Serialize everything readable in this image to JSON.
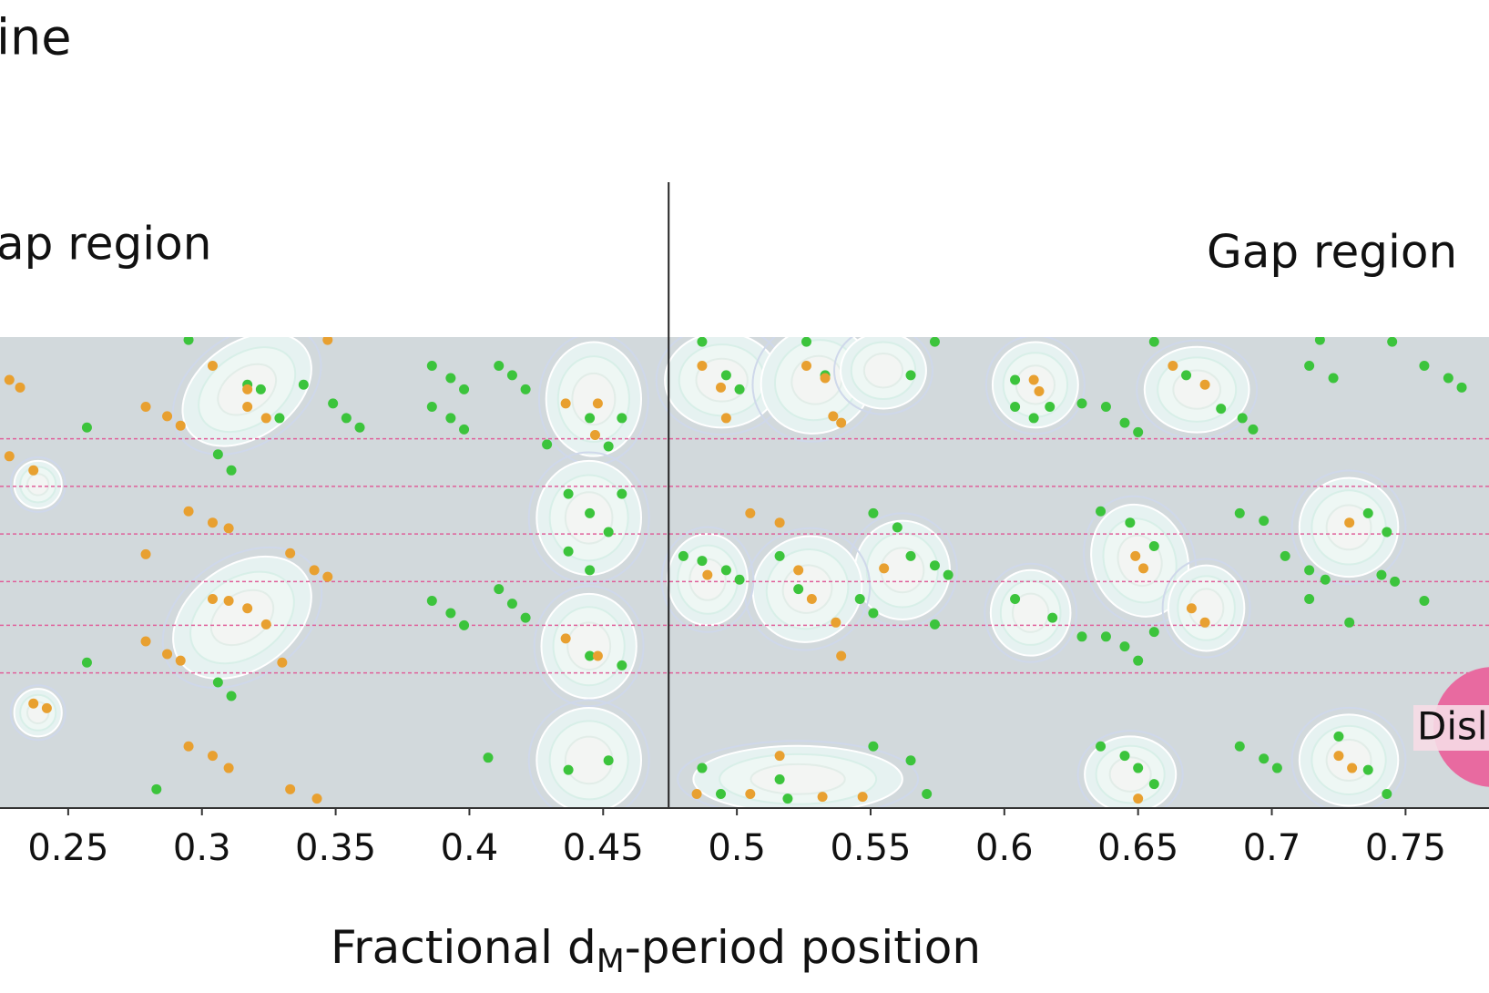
{
  "chart_data": {
    "type": "scatter",
    "title": "ine",
    "annotations": {
      "left_region": "ap region",
      "right_region": "Gap region",
      "badge": "Disl"
    },
    "xlabel": {
      "text": "Fractional d",
      "sub": "M",
      "rest": "-period position"
    },
    "xlim": [
      0.2245,
      0.7812
    ],
    "ylim": [
      0,
      1
    ],
    "xticks": [
      0.25,
      0.3,
      0.35,
      0.4,
      0.45,
      0.5,
      0.55,
      0.6,
      0.65,
      0.7,
      0.75
    ],
    "vline": 0.4745,
    "hlines": [
      0.784,
      0.683,
      0.582,
      0.481,
      0.388,
      0.287
    ],
    "series": [
      {
        "color": "#3cc43c",
        "x": [
          0.295,
          0.257,
          0.306,
          0.311,
          0.317,
          0.322,
          0.329,
          0.338,
          0.349,
          0.354,
          0.359,
          0.386,
          0.393,
          0.398,
          0.411,
          0.416,
          0.421,
          0.386,
          0.393,
          0.398,
          0.429,
          0.445,
          0.452,
          0.457,
          0.437,
          0.445,
          0.457,
          0.452,
          0.437,
          0.445,
          0.386,
          0.393,
          0.398,
          0.411,
          0.416,
          0.421,
          0.257,
          0.306,
          0.311,
          0.445,
          0.457,
          0.407,
          0.437,
          0.452,
          0.283,
          0.487,
          0.496,
          0.501,
          0.526,
          0.533,
          0.574,
          0.565,
          0.604,
          0.604,
          0.611,
          0.617,
          0.629,
          0.638,
          0.645,
          0.65,
          0.656,
          0.668,
          0.681,
          0.689,
          0.693,
          0.718,
          0.714,
          0.723,
          0.757,
          0.766,
          0.771,
          0.745,
          0.636,
          0.647,
          0.656,
          0.688,
          0.697,
          0.705,
          0.714,
          0.72,
          0.736,
          0.743,
          0.741,
          0.746,
          0.714,
          0.729,
          0.757,
          0.604,
          0.618,
          0.629,
          0.638,
          0.645,
          0.65,
          0.656,
          0.551,
          0.56,
          0.565,
          0.574,
          0.579,
          0.48,
          0.487,
          0.496,
          0.501,
          0.516,
          0.523,
          0.546,
          0.551,
          0.574,
          0.636,
          0.645,
          0.65,
          0.656,
          0.688,
          0.697,
          0.702,
          0.736,
          0.725,
          0.743,
          0.551,
          0.565,
          0.571,
          0.487,
          0.494,
          0.516,
          0.519
        ],
        "values": [
          0.994,
          0.808,
          0.751,
          0.717,
          0.899,
          0.889,
          0.828,
          0.899,
          0.859,
          0.828,
          0.808,
          0.939,
          0.913,
          0.889,
          0.939,
          0.919,
          0.889,
          0.852,
          0.828,
          0.804,
          0.772,
          0.828,
          0.768,
          0.828,
          0.667,
          0.626,
          0.667,
          0.586,
          0.545,
          0.505,
          0.44,
          0.414,
          0.388,
          0.465,
          0.434,
          0.404,
          0.309,
          0.267,
          0.238,
          0.323,
          0.303,
          0.107,
          0.081,
          0.101,
          0.04,
          0.99,
          0.919,
          0.889,
          0.99,
          0.919,
          0.99,
          0.919,
          0.909,
          0.852,
          0.828,
          0.852,
          0.859,
          0.852,
          0.818,
          0.798,
          0.99,
          0.919,
          0.848,
          0.828,
          0.804,
          0.994,
          0.939,
          0.913,
          0.939,
          0.913,
          0.893,
          0.99,
          0.63,
          0.606,
          0.556,
          0.626,
          0.61,
          0.535,
          0.505,
          0.485,
          0.626,
          0.586,
          0.495,
          0.481,
          0.444,
          0.394,
          0.44,
          0.444,
          0.404,
          0.364,
          0.364,
          0.343,
          0.313,
          0.374,
          0.626,
          0.596,
          0.535,
          0.515,
          0.495,
          0.535,
          0.525,
          0.505,
          0.485,
          0.535,
          0.465,
          0.444,
          0.414,
          0.39,
          0.131,
          0.111,
          0.085,
          0.051,
          0.131,
          0.105,
          0.085,
          0.081,
          0.152,
          0.03,
          0.131,
          0.101,
          0.03,
          0.085,
          0.03,
          0.061,
          0.02
        ]
      },
      {
        "color": "#e8a030",
        "x": [
          0.347,
          0.304,
          0.317,
          0.317,
          0.324,
          0.279,
          0.287,
          0.292,
          0.228,
          0.232,
          0.228,
          0.237,
          0.436,
          0.448,
          0.447,
          0.295,
          0.304,
          0.31,
          0.279,
          0.333,
          0.342,
          0.347,
          0.304,
          0.31,
          0.317,
          0.324,
          0.33,
          0.279,
          0.287,
          0.292,
          0.436,
          0.448,
          0.237,
          0.242,
          0.295,
          0.304,
          0.31,
          0.333,
          0.343,
          0.487,
          0.494,
          0.496,
          0.526,
          0.533,
          0.536,
          0.539,
          0.505,
          0.516,
          0.489,
          0.523,
          0.528,
          0.537,
          0.539,
          0.555,
          0.611,
          0.613,
          0.663,
          0.675,
          0.649,
          0.652,
          0.67,
          0.675,
          0.729,
          0.725,
          0.73,
          0.516,
          0.485,
          0.505,
          0.532,
          0.65,
          0.547
        ],
        "values": [
          0.994,
          0.939,
          0.889,
          0.852,
          0.828,
          0.852,
          0.832,
          0.812,
          0.909,
          0.893,
          0.747,
          0.717,
          0.859,
          0.859,
          0.792,
          0.63,
          0.606,
          0.594,
          0.539,
          0.541,
          0.505,
          0.491,
          0.444,
          0.44,
          0.424,
          0.39,
          0.309,
          0.354,
          0.327,
          0.313,
          0.36,
          0.323,
          0.222,
          0.212,
          0.131,
          0.111,
          0.085,
          0.04,
          0.02,
          0.939,
          0.893,
          0.828,
          0.939,
          0.913,
          0.832,
          0.818,
          0.626,
          0.606,
          0.495,
          0.505,
          0.444,
          0.394,
          0.323,
          0.509,
          0.909,
          0.885,
          0.939,
          0.899,
          0.535,
          0.509,
          0.424,
          0.394,
          0.606,
          0.111,
          0.085,
          0.111,
          0.03,
          0.03,
          0.024,
          0.02,
          0.024
        ]
      }
    ]
  }
}
